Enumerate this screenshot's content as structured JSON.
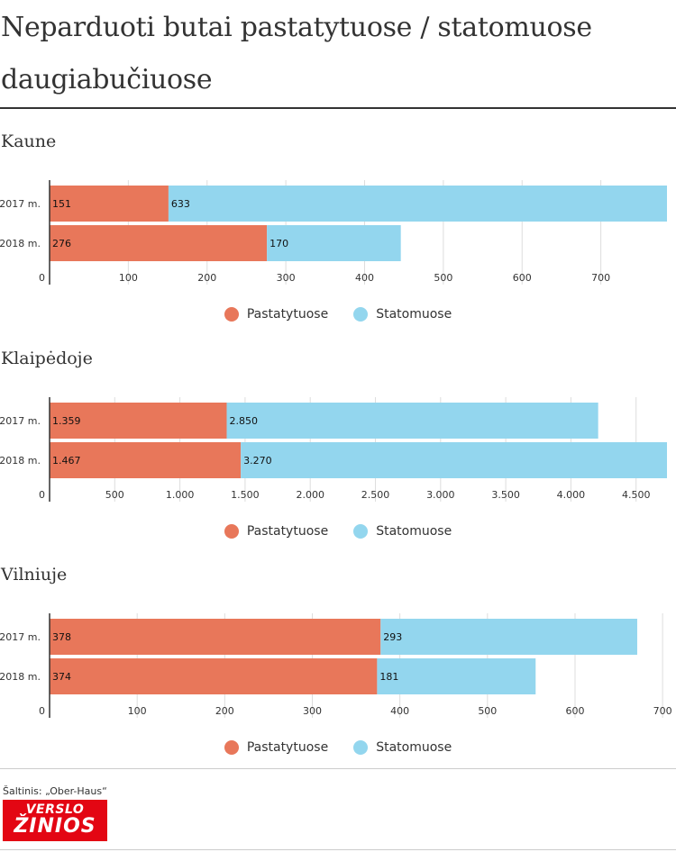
{
  "title": "Neparduoti butai pastatytuose / statomuose daugiabučiuose",
  "colors": {
    "pastatytuose": "#e8775a",
    "statomuose": "#93d6ee",
    "grid": "#dddddd",
    "axis": "#333333"
  },
  "legend": {
    "pastatytuose": "Pastatytuose",
    "statomuose": "Statomuose"
  },
  "source": "Šaltinis: „Ober-Haus“",
  "logo": {
    "top": "VERSLO",
    "bottom": "ŽINIOS"
  },
  "chart_data": [
    {
      "type": "bar",
      "orientation": "horizontal",
      "stacked": true,
      "title": "Kaune",
      "categories": [
        "2017 m.",
        "2018 m."
      ],
      "series": [
        {
          "name": "Pastatytuose",
          "values": [
            151,
            276
          ],
          "labels": [
            "151",
            "276"
          ]
        },
        {
          "name": "Statomuose",
          "values": [
            633,
            170
          ],
          "labels": [
            "633",
            "170"
          ]
        }
      ],
      "xlim": [
        0,
        784
      ],
      "ticks": [
        0,
        100,
        200,
        300,
        400,
        500,
        600,
        700
      ],
      "tick_labels": [
        "0",
        "100",
        "200",
        "300",
        "400",
        "500",
        "600",
        "700"
      ],
      "grid": true,
      "legend_position": "bottom-center"
    },
    {
      "type": "bar",
      "orientation": "horizontal",
      "stacked": true,
      "title": "Klaipėdoje",
      "categories": [
        "2017 m.",
        "2018 m."
      ],
      "series": [
        {
          "name": "Pastatytuose",
          "values": [
            1359,
            1467
          ],
          "labels": [
            "1.359",
            "1.467"
          ]
        },
        {
          "name": "Statomuose",
          "values": [
            2850,
            3270
          ],
          "labels": [
            "2.850",
            "3.270"
          ]
        }
      ],
      "xlim": [
        0,
        4737
      ],
      "ticks": [
        0,
        500,
        1000,
        1500,
        2000,
        2500,
        3000,
        3500,
        4000,
        4500
      ],
      "tick_labels": [
        "0",
        "500",
        "1.000",
        "1.500",
        "2.000",
        "2.500",
        "3.000",
        "3.500",
        "4.000",
        "4.500"
      ],
      "grid": true,
      "legend_position": "bottom-center"
    },
    {
      "type": "bar",
      "orientation": "horizontal",
      "stacked": true,
      "title": "Vilniuje",
      "categories": [
        "2017 m.",
        "2018 m."
      ],
      "series": [
        {
          "name": "Pastatytuose",
          "values": [
            378,
            374
          ],
          "labels": [
            "378",
            "374"
          ]
        },
        {
          "name": "Statomuose",
          "values": [
            293,
            181
          ],
          "labels": [
            "293",
            "181"
          ]
        }
      ],
      "xlim": [
        0,
        705
      ],
      "ticks": [
        0,
        100,
        200,
        300,
        400,
        500,
        600,
        700
      ],
      "tick_labels": [
        "0",
        "100",
        "200",
        "300",
        "400",
        "500",
        "600",
        "700"
      ],
      "grid": true,
      "legend_position": "bottom-center"
    }
  ]
}
